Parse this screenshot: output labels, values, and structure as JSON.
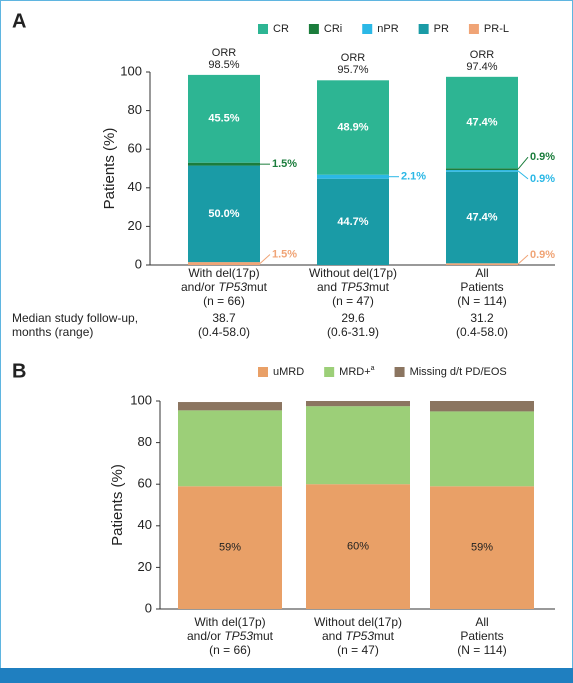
{
  "chart_data": [
    {
      "type": "stacked_bar",
      "panel_label": "A",
      "y_label": "Patients (%)",
      "categories": [
        [
          [
            "With del(17p)"
          ],
          [
            "and/or ",
            "TP53",
            "mut"
          ],
          [
            "(n = 66)"
          ]
        ],
        [
          [
            "Without del(17p)"
          ],
          [
            "and ",
            "TP53",
            "mut"
          ],
          [
            "(n = 47)"
          ]
        ],
        [
          [
            "All"
          ],
          [
            "Patients"
          ],
          [
            "(N = 114)"
          ]
        ]
      ],
      "series": [
        {
          "name": "CR",
          "color": "#2db593",
          "values": [
            45.5,
            48.9,
            47.4
          ],
          "value_labels": [
            "45.5%",
            "48.9%",
            "47.4%"
          ]
        },
        {
          "name": "CRi",
          "color": "#1b7d3c",
          "values": [
            1.5,
            0,
            0.9
          ],
          "value_labels": [
            "1.5%",
            null,
            "0.9%"
          ]
        },
        {
          "name": "nPR",
          "color": "#2bb8e6",
          "values": [
            0,
            2.1,
            0.9
          ],
          "value_labels": [
            null,
            "2.1%",
            "0.9%"
          ]
        },
        {
          "name": "PR",
          "color": "#1a9ba6",
          "values": [
            50.0,
            44.7,
            47.4
          ],
          "value_labels": [
            "50.0%",
            "44.7%",
            "47.4%"
          ]
        },
        {
          "name": "PR-L",
          "color": "#f0a476",
          "values": [
            1.5,
            0,
            0.9
          ],
          "value_labels": [
            "1.5%",
            null,
            "0.9%"
          ]
        }
      ],
      "orr": {
        "label": "ORR",
        "values": [
          98.5,
          95.7,
          97.4
        ],
        "value_labels": [
          "98.5%",
          "95.7%",
          "97.4%"
        ]
      },
      "followup": {
        "label": [
          "Median study follow-up,",
          "months (range)"
        ],
        "medians": [
          38.7,
          29.6,
          31.2
        ],
        "ranges": [
          "(0.4-58.0)",
          "(0.6-31.9)",
          "(0.4-58.0)"
        ]
      },
      "ylim": [
        0,
        100
      ],
      "yticks": [
        0,
        20,
        40,
        60,
        80,
        100
      ]
    },
    {
      "type": "stacked_bar",
      "panel_label": "B",
      "y_label": "Patients (%)",
      "categories": [
        [
          [
            "With del(17p)"
          ],
          [
            "and/or ",
            "TP53",
            "mut"
          ],
          [
            "(n = 66)"
          ]
        ],
        [
          [
            "Without del(17p)"
          ],
          [
            "and ",
            "TP53",
            "mut"
          ],
          [
            "(n = 47)"
          ]
        ],
        [
          [
            "All"
          ],
          [
            "Patients"
          ],
          [
            "(N = 114)"
          ]
        ]
      ],
      "series": [
        {
          "name": "uMRD",
          "color": "#e9a067",
          "values": [
            59,
            60,
            59
          ],
          "value_labels": [
            "59%",
            "60%",
            "59%"
          ]
        },
        {
          "name": "MRD+",
          "name_superscript": "a",
          "color": "#9ccf78",
          "values": [
            36.5,
            37.5,
            36
          ],
          "value_labels": [
            null,
            null,
            null
          ]
        },
        {
          "name": "Missing d/t PD/EOS",
          "color": "#8b7560",
          "values": [
            4,
            2.5,
            5
          ],
          "value_labels": [
            null,
            null,
            null
          ]
        }
      ],
      "ylim": [
        0,
        100
      ],
      "yticks": [
        0,
        20,
        40,
        60,
        80,
        100
      ]
    }
  ]
}
